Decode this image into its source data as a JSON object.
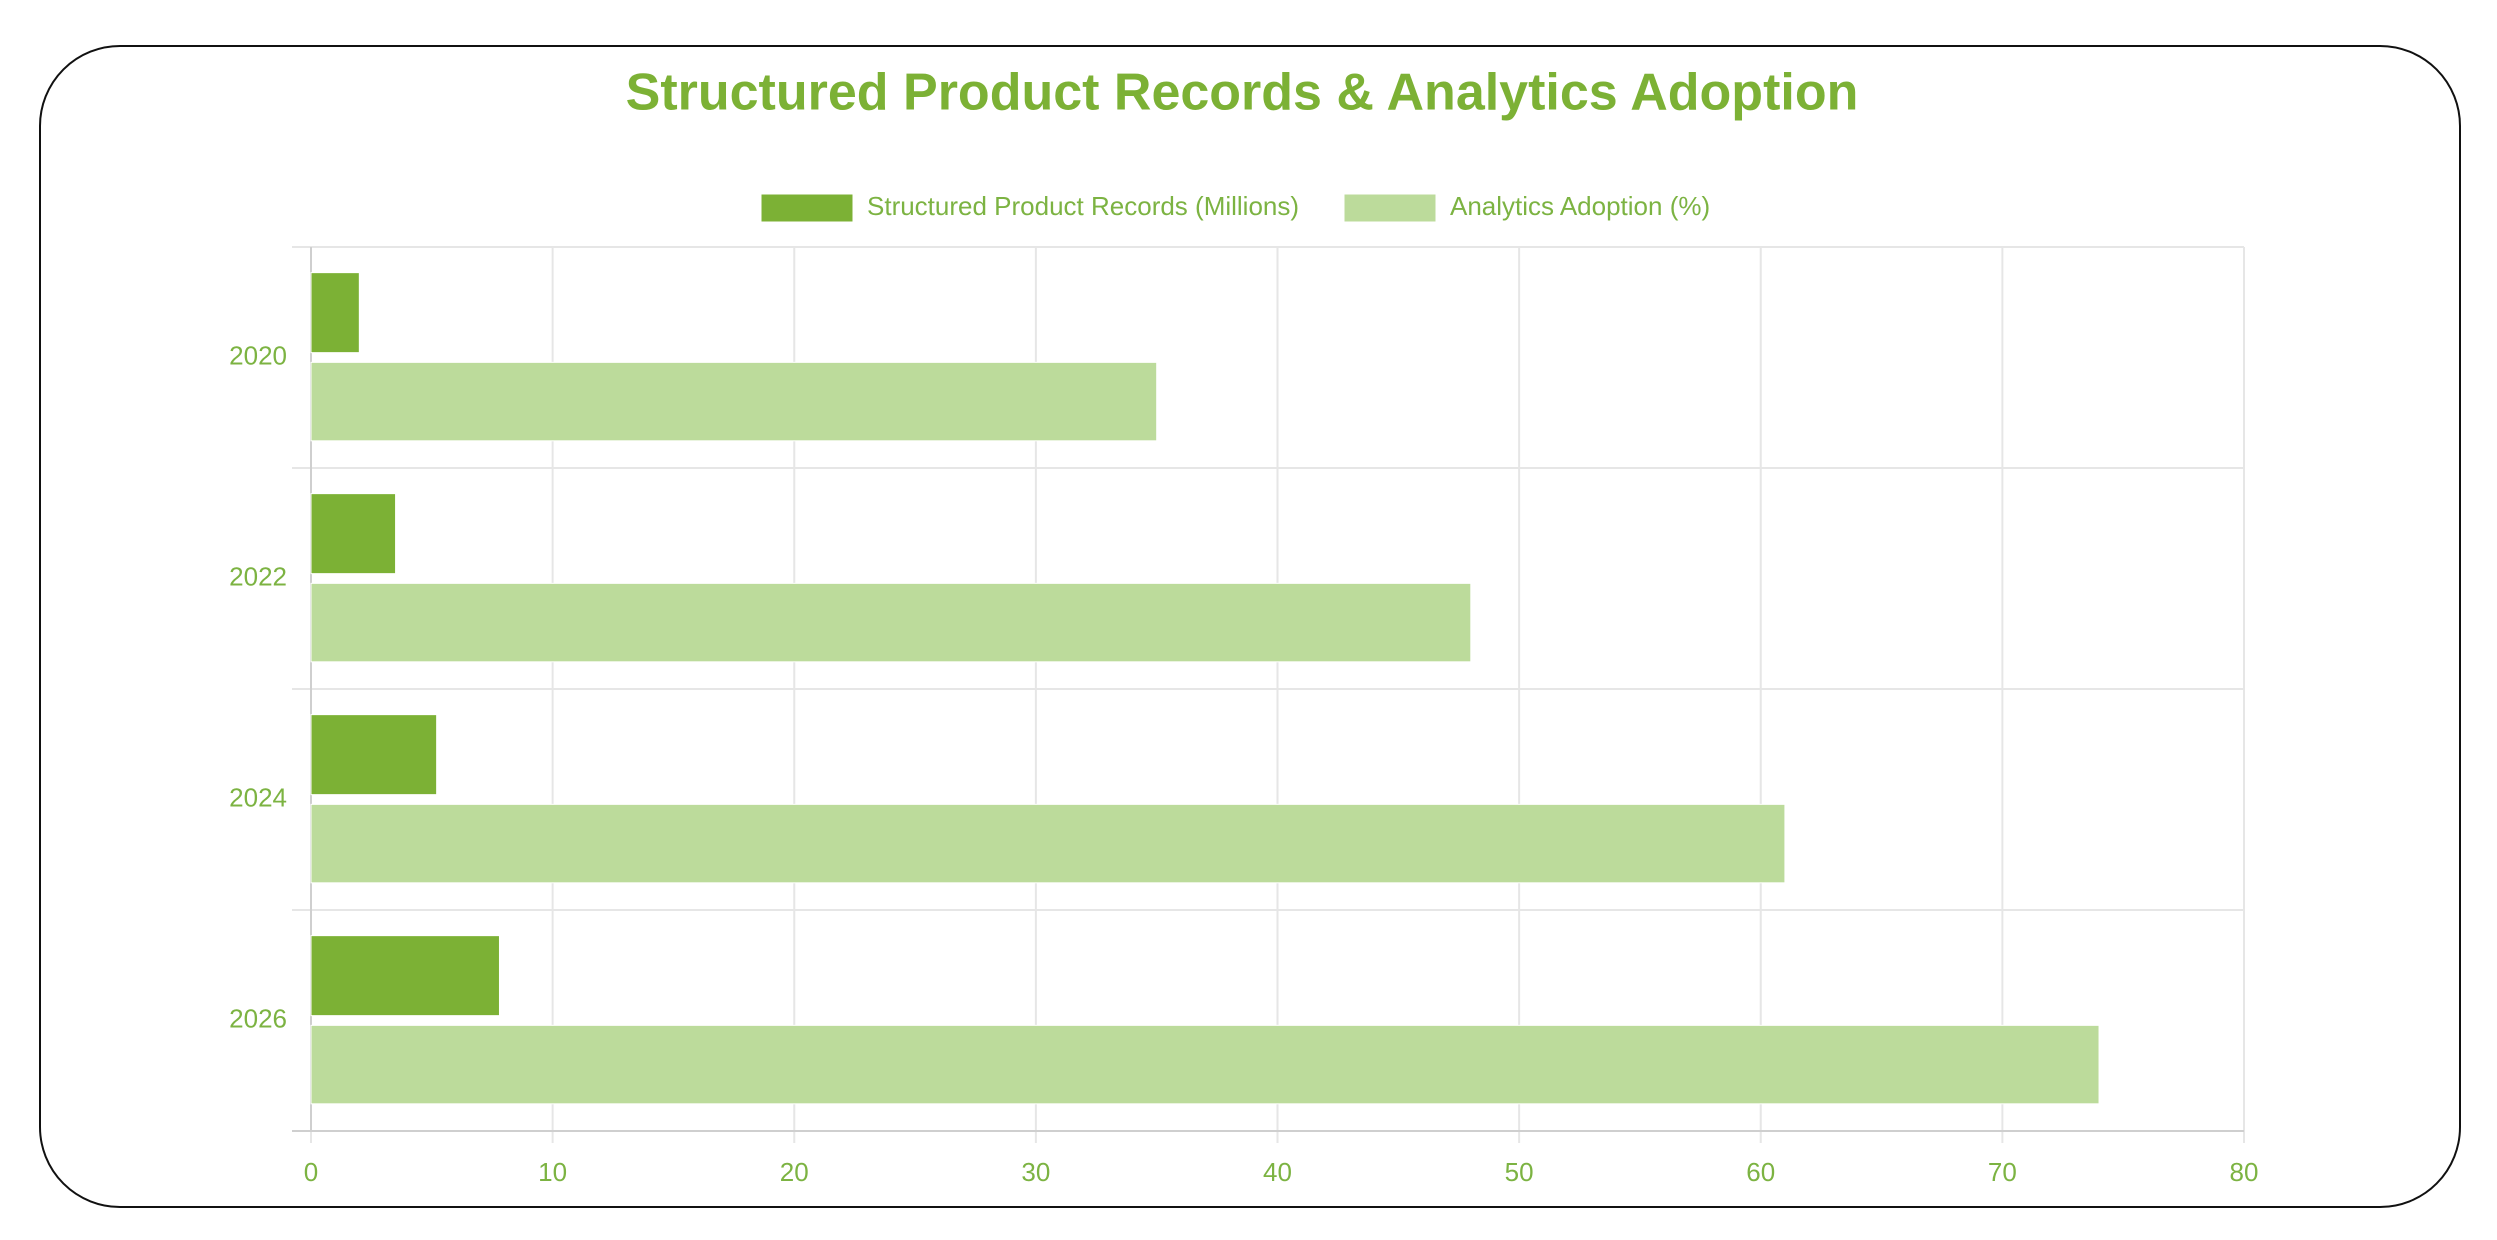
{
  "chart_data": {
    "type": "bar",
    "orientation": "horizontal",
    "title": "Structured Product Records & Analytics Adoption",
    "categories": [
      "2020",
      "2022",
      "2024",
      "2026"
    ],
    "series": [
      {
        "name": "Structured Product Records (Millions)",
        "color": "#7cb135",
        "values": [
          2,
          3.5,
          5.2,
          7.8
        ]
      },
      {
        "name": "Analytics Adoption (%)",
        "color": "#bcdb9b",
        "values": [
          35,
          48,
          61,
          74
        ]
      }
    ],
    "xlim": [
      0,
      80
    ],
    "xticks": [
      0,
      10,
      20,
      30,
      40,
      50,
      60,
      70,
      80
    ],
    "grid": true,
    "legend": "top"
  }
}
